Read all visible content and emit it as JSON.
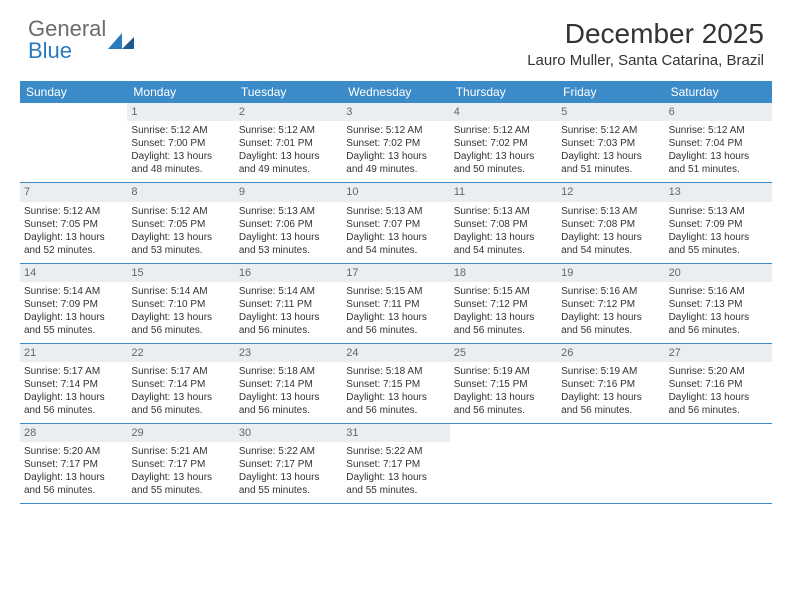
{
  "brand": {
    "name1": "General",
    "name2": "Blue"
  },
  "title": "December 2025",
  "location": "Lauro Muller, Santa Catarina, Brazil",
  "colors": {
    "header_bg": "#3b8bc9",
    "daynum_bg": "#e9eef2",
    "rule": "#3b8bc9"
  },
  "day_names": [
    "Sunday",
    "Monday",
    "Tuesday",
    "Wednesday",
    "Thursday",
    "Friday",
    "Saturday"
  ],
  "weeks": [
    [
      {
        "n": "",
        "empty": true
      },
      {
        "n": "1",
        "sr": "Sunrise: 5:12 AM",
        "ss": "Sunset: 7:00 PM",
        "dl1": "Daylight: 13 hours",
        "dl2": "and 48 minutes."
      },
      {
        "n": "2",
        "sr": "Sunrise: 5:12 AM",
        "ss": "Sunset: 7:01 PM",
        "dl1": "Daylight: 13 hours",
        "dl2": "and 49 minutes."
      },
      {
        "n": "3",
        "sr": "Sunrise: 5:12 AM",
        "ss": "Sunset: 7:02 PM",
        "dl1": "Daylight: 13 hours",
        "dl2": "and 49 minutes."
      },
      {
        "n": "4",
        "sr": "Sunrise: 5:12 AM",
        "ss": "Sunset: 7:02 PM",
        "dl1": "Daylight: 13 hours",
        "dl2": "and 50 minutes."
      },
      {
        "n": "5",
        "sr": "Sunrise: 5:12 AM",
        "ss": "Sunset: 7:03 PM",
        "dl1": "Daylight: 13 hours",
        "dl2": "and 51 minutes."
      },
      {
        "n": "6",
        "sr": "Sunrise: 5:12 AM",
        "ss": "Sunset: 7:04 PM",
        "dl1": "Daylight: 13 hours",
        "dl2": "and 51 minutes."
      }
    ],
    [
      {
        "n": "7",
        "sr": "Sunrise: 5:12 AM",
        "ss": "Sunset: 7:05 PM",
        "dl1": "Daylight: 13 hours",
        "dl2": "and 52 minutes."
      },
      {
        "n": "8",
        "sr": "Sunrise: 5:12 AM",
        "ss": "Sunset: 7:05 PM",
        "dl1": "Daylight: 13 hours",
        "dl2": "and 53 minutes."
      },
      {
        "n": "9",
        "sr": "Sunrise: 5:13 AM",
        "ss": "Sunset: 7:06 PM",
        "dl1": "Daylight: 13 hours",
        "dl2": "and 53 minutes."
      },
      {
        "n": "10",
        "sr": "Sunrise: 5:13 AM",
        "ss": "Sunset: 7:07 PM",
        "dl1": "Daylight: 13 hours",
        "dl2": "and 54 minutes."
      },
      {
        "n": "11",
        "sr": "Sunrise: 5:13 AM",
        "ss": "Sunset: 7:08 PM",
        "dl1": "Daylight: 13 hours",
        "dl2": "and 54 minutes."
      },
      {
        "n": "12",
        "sr": "Sunrise: 5:13 AM",
        "ss": "Sunset: 7:08 PM",
        "dl1": "Daylight: 13 hours",
        "dl2": "and 54 minutes."
      },
      {
        "n": "13",
        "sr": "Sunrise: 5:13 AM",
        "ss": "Sunset: 7:09 PM",
        "dl1": "Daylight: 13 hours",
        "dl2": "and 55 minutes."
      }
    ],
    [
      {
        "n": "14",
        "sr": "Sunrise: 5:14 AM",
        "ss": "Sunset: 7:09 PM",
        "dl1": "Daylight: 13 hours",
        "dl2": "and 55 minutes."
      },
      {
        "n": "15",
        "sr": "Sunrise: 5:14 AM",
        "ss": "Sunset: 7:10 PM",
        "dl1": "Daylight: 13 hours",
        "dl2": "and 56 minutes."
      },
      {
        "n": "16",
        "sr": "Sunrise: 5:14 AM",
        "ss": "Sunset: 7:11 PM",
        "dl1": "Daylight: 13 hours",
        "dl2": "and 56 minutes."
      },
      {
        "n": "17",
        "sr": "Sunrise: 5:15 AM",
        "ss": "Sunset: 7:11 PM",
        "dl1": "Daylight: 13 hours",
        "dl2": "and 56 minutes."
      },
      {
        "n": "18",
        "sr": "Sunrise: 5:15 AM",
        "ss": "Sunset: 7:12 PM",
        "dl1": "Daylight: 13 hours",
        "dl2": "and 56 minutes."
      },
      {
        "n": "19",
        "sr": "Sunrise: 5:16 AM",
        "ss": "Sunset: 7:12 PM",
        "dl1": "Daylight: 13 hours",
        "dl2": "and 56 minutes."
      },
      {
        "n": "20",
        "sr": "Sunrise: 5:16 AM",
        "ss": "Sunset: 7:13 PM",
        "dl1": "Daylight: 13 hours",
        "dl2": "and 56 minutes."
      }
    ],
    [
      {
        "n": "21",
        "sr": "Sunrise: 5:17 AM",
        "ss": "Sunset: 7:14 PM",
        "dl1": "Daylight: 13 hours",
        "dl2": "and 56 minutes."
      },
      {
        "n": "22",
        "sr": "Sunrise: 5:17 AM",
        "ss": "Sunset: 7:14 PM",
        "dl1": "Daylight: 13 hours",
        "dl2": "and 56 minutes."
      },
      {
        "n": "23",
        "sr": "Sunrise: 5:18 AM",
        "ss": "Sunset: 7:14 PM",
        "dl1": "Daylight: 13 hours",
        "dl2": "and 56 minutes."
      },
      {
        "n": "24",
        "sr": "Sunrise: 5:18 AM",
        "ss": "Sunset: 7:15 PM",
        "dl1": "Daylight: 13 hours",
        "dl2": "and 56 minutes."
      },
      {
        "n": "25",
        "sr": "Sunrise: 5:19 AM",
        "ss": "Sunset: 7:15 PM",
        "dl1": "Daylight: 13 hours",
        "dl2": "and 56 minutes."
      },
      {
        "n": "26",
        "sr": "Sunrise: 5:19 AM",
        "ss": "Sunset: 7:16 PM",
        "dl1": "Daylight: 13 hours",
        "dl2": "and 56 minutes."
      },
      {
        "n": "27",
        "sr": "Sunrise: 5:20 AM",
        "ss": "Sunset: 7:16 PM",
        "dl1": "Daylight: 13 hours",
        "dl2": "and 56 minutes."
      }
    ],
    [
      {
        "n": "28",
        "sr": "Sunrise: 5:20 AM",
        "ss": "Sunset: 7:17 PM",
        "dl1": "Daylight: 13 hours",
        "dl2": "and 56 minutes."
      },
      {
        "n": "29",
        "sr": "Sunrise: 5:21 AM",
        "ss": "Sunset: 7:17 PM",
        "dl1": "Daylight: 13 hours",
        "dl2": "and 55 minutes."
      },
      {
        "n": "30",
        "sr": "Sunrise: 5:22 AM",
        "ss": "Sunset: 7:17 PM",
        "dl1": "Daylight: 13 hours",
        "dl2": "and 55 minutes."
      },
      {
        "n": "31",
        "sr": "Sunrise: 5:22 AM",
        "ss": "Sunset: 7:17 PM",
        "dl1": "Daylight: 13 hours",
        "dl2": "and 55 minutes."
      },
      {
        "n": "",
        "empty": true
      },
      {
        "n": "",
        "empty": true
      },
      {
        "n": "",
        "empty": true
      }
    ]
  ]
}
